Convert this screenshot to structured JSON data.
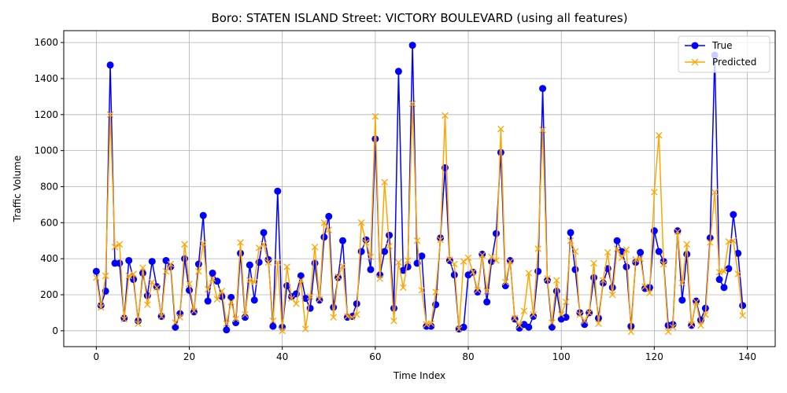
{
  "chart_data": {
    "type": "line",
    "title": "Boro: STATEN ISLAND Street: VICTORY BOULEVARD (using all features)",
    "xlabel": "Time Index",
    "ylabel": "Traffic Volume",
    "xlim": [
      -7,
      146
    ],
    "ylim": [
      -88,
      1666
    ],
    "xticks": [
      0,
      20,
      40,
      60,
      80,
      100,
      120,
      140
    ],
    "yticks": [
      0,
      200,
      400,
      600,
      800,
      1000,
      1200,
      1400,
      1600
    ],
    "grid": true,
    "legend_position": "top-right",
    "series": [
      {
        "name": "True",
        "color": "#0000ff",
        "marker": "circle",
        "values": [
          330,
          140,
          220,
          1475,
          375,
          375,
          70,
          390,
          285,
          55,
          320,
          195,
          385,
          245,
          80,
          390,
          355,
          20,
          95,
          400,
          225,
          105,
          370,
          640,
          165,
          320,
          275,
          190,
          5,
          185,
          45,
          430,
          75,
          365,
          170,
          380,
          545,
          395,
          25,
          775,
          20,
          250,
          190,
          205,
          305,
          180,
          125,
          375,
          170,
          520,
          635,
          130,
          295,
          500,
          75,
          80,
          150,
          440,
          505,
          340,
          1065,
          310,
          440,
          530,
          125,
          1440,
          335,
          355,
          1585,
          375,
          415,
          25,
          25,
          145,
          515,
          905,
          390,
          310,
          10,
          20,
          310,
          325,
          215,
          425,
          160,
          385,
          540,
          990,
          250,
          390,
          65,
          15,
          35,
          20,
          80,
          330,
          1345,
          280,
          20,
          220,
          65,
          75,
          545,
          340,
          100,
          35,
          100,
          295,
          70,
          265,
          345,
          240,
          500,
          440,
          355,
          25,
          380,
          435,
          235,
          240,
          555,
          440,
          385,
          30,
          35,
          555,
          170,
          425,
          30,
          165,
          60,
          125,
          515,
          1530,
          285,
          240,
          345,
          645,
          430,
          140
        ]
      },
      {
        "name": "Predicted",
        "color": "#ffa500",
        "marker": "x",
        "values": [
          295,
          130,
          305,
          1200,
          465,
          480,
          65,
          305,
          315,
          40,
          350,
          145,
          270,
          240,
          80,
          330,
          370,
          45,
          75,
          480,
          260,
          110,
          330,
          485,
          230,
          290,
          175,
          220,
          40,
          160,
          65,
          490,
          90,
          280,
          270,
          460,
          480,
          380,
          55,
          380,
          0,
          355,
          180,
          150,
          280,
          10,
          190,
          465,
          175,
          600,
          560,
          75,
          300,
          360,
          80,
          75,
          90,
          600,
          490,
          410,
          1190,
          290,
          825,
          470,
          55,
          380,
          240,
          390,
          1260,
          500,
          225,
          35,
          40,
          215,
          505,
          1195,
          395,
          370,
          10,
          385,
          405,
          325,
          225,
          420,
          220,
          410,
          390,
          1120,
          270,
          385,
          70,
          30,
          110,
          320,
          90,
          455,
          1115,
          290,
          45,
          280,
          90,
          160,
          500,
          440,
          90,
          55,
          100,
          375,
          40,
          280,
          435,
          200,
          455,
          405,
          450,
          -5,
          395,
          400,
          245,
          210,
          770,
          1085,
          370,
          -5,
          20,
          550,
          265,
          480,
          35,
          160,
          30,
          90,
          490,
          770,
          325,
          330,
          495,
          500,
          315,
          85
        ]
      }
    ]
  }
}
